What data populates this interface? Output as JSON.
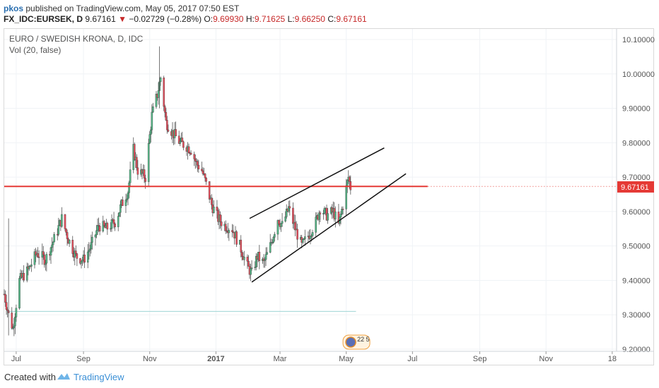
{
  "header": {
    "author": "pkos",
    "published": "published on TradingView.com, May 05, 2017 07:50 EST",
    "symbol": "FX_IDC:EURSEK, D",
    "last": "9.67161",
    "change": "−0.02729 (−0.28%)",
    "o_label": "O:",
    "o_value": "9.69930",
    "h_label": "H:",
    "h_value": "9.71625",
    "l_label": "L:",
    "l_value": "9.66250",
    "c_label": "C:",
    "c_value": "9.67161"
  },
  "footer": {
    "created_with": "Created with",
    "brand": "TradingView"
  },
  "colors": {
    "up": "#53b987",
    "down": "#eb4d5c",
    "hline": "#e53935",
    "text": "#555555",
    "grid": "#f0f3f6"
  },
  "chart_data": {
    "type": "candlestick",
    "title": "EURO / SWEDISH KRONA, D, IDC",
    "indicator": "Vol (20, false)",
    "ylim": [
      9.2,
      10.1
    ],
    "y_ticks": [
      "10.10000",
      "10.00000",
      "9.90000",
      "9.80000",
      "9.70000",
      "9.60000",
      "9.50000",
      "9.40000",
      "9.30000",
      "9.20000"
    ],
    "x_ticks": [
      "Jul",
      "Sep",
      "Nov",
      "2017",
      "Mar",
      "May",
      "Jul",
      "Sep",
      "Nov",
      "18"
    ],
    "x_range": [
      "2016-06-20",
      "2018-01-05"
    ],
    "price_label": "9.67161",
    "horizontal_line": 9.673,
    "trend_lines": [
      {
        "from": [
          "2017-02-01",
          9.58
        ],
        "to": [
          "2017-06-05",
          9.785
        ]
      },
      {
        "from": [
          "2017-02-03",
          9.395
        ],
        "to": [
          "2017-06-25",
          9.71
        ]
      }
    ],
    "annotation_badge": "22 5",
    "close_path": [
      [
        "2016-06-20",
        9.36
      ],
      [
        "2016-06-24",
        9.3
      ],
      [
        "2016-06-28",
        9.26
      ],
      [
        "2016-07-04",
        9.4
      ],
      [
        "2016-07-12",
        9.43
      ],
      [
        "2016-07-20",
        9.48
      ],
      [
        "2016-07-28",
        9.46
      ],
      [
        "2016-08-05",
        9.52
      ],
      [
        "2016-08-12",
        9.58
      ],
      [
        "2016-08-18",
        9.52
      ],
      [
        "2016-08-25",
        9.47
      ],
      [
        "2016-09-01",
        9.46
      ],
      [
        "2016-09-08",
        9.5
      ],
      [
        "2016-09-15",
        9.56
      ],
      [
        "2016-09-22",
        9.55
      ],
      [
        "2016-09-30",
        9.57
      ],
      [
        "2016-10-06",
        9.62
      ],
      [
        "2016-10-12",
        9.66
      ],
      [
        "2016-10-17",
        9.78
      ],
      [
        "2016-10-21",
        9.72
      ],
      [
        "2016-10-28",
        9.7
      ],
      [
        "2016-11-03",
        9.88
      ],
      [
        "2016-11-08",
        9.94
      ],
      [
        "2016-11-11",
        9.99
      ],
      [
        "2016-11-16",
        9.86
      ],
      [
        "2016-11-22",
        9.83
      ],
      [
        "2016-11-29",
        9.8
      ],
      [
        "2016-12-05",
        9.79
      ],
      [
        "2016-12-09",
        9.78
      ],
      [
        "2016-12-14",
        9.74
      ],
      [
        "2016-12-19",
        9.72
      ],
      [
        "2016-12-22",
        9.69
      ],
      [
        "2016-12-28",
        9.62
      ],
      [
        "2017-01-03",
        9.58
      ],
      [
        "2017-01-09",
        9.56
      ],
      [
        "2017-01-16",
        9.55
      ],
      [
        "2017-01-23",
        9.5
      ],
      [
        "2017-01-30",
        9.44
      ],
      [
        "2017-02-03",
        9.42
      ],
      [
        "2017-02-08",
        9.47
      ],
      [
        "2017-02-14",
        9.45
      ],
      [
        "2017-02-20",
        9.5
      ],
      [
        "2017-02-27",
        9.58
      ],
      [
        "2017-03-03",
        9.56
      ],
      [
        "2017-03-09",
        9.61
      ],
      [
        "2017-03-15",
        9.55
      ],
      [
        "2017-03-21",
        9.5
      ],
      [
        "2017-03-27",
        9.53
      ],
      [
        "2017-04-03",
        9.57
      ],
      [
        "2017-04-07",
        9.61
      ],
      [
        "2017-04-13",
        9.59
      ],
      [
        "2017-04-19",
        9.6
      ],
      [
        "2017-04-24",
        9.56
      ],
      [
        "2017-04-28",
        9.62
      ],
      [
        "2017-05-03",
        9.7
      ],
      [
        "2017-05-05",
        9.67
      ]
    ]
  }
}
